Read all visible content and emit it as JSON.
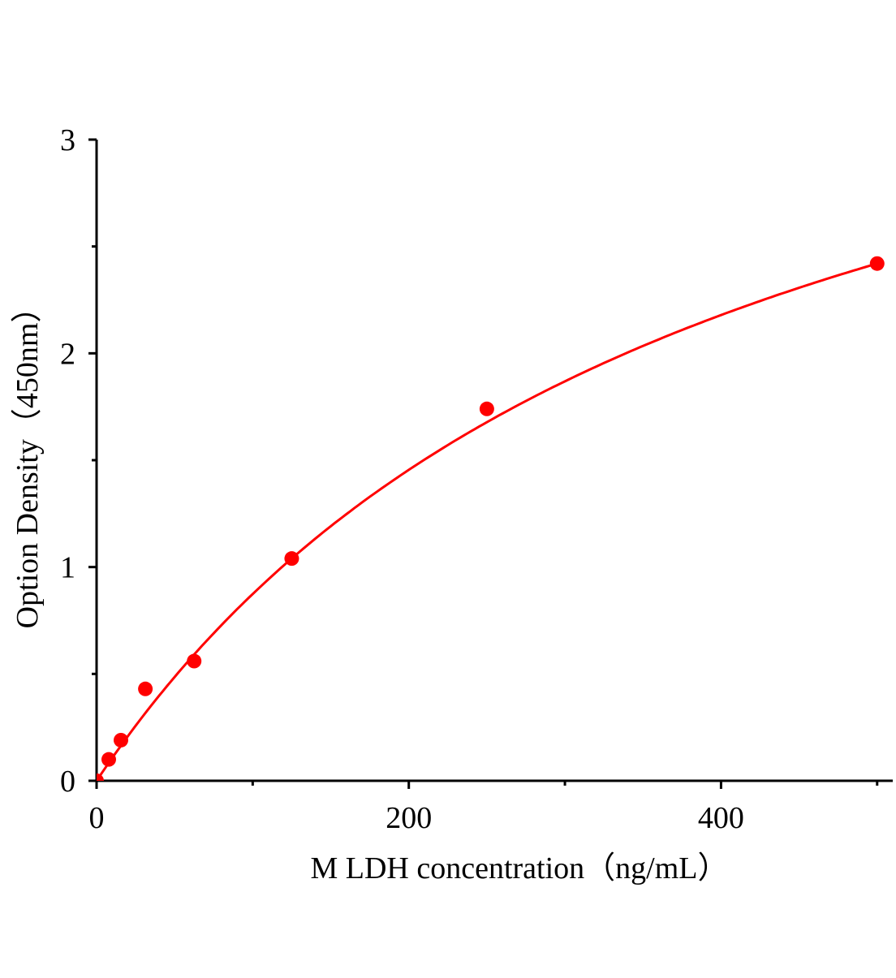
{
  "chart_data": {
    "type": "scatter",
    "title": "",
    "xlabel": "M LDH concentration（ng/mL）",
    "ylabel": "Option Density（450nm）",
    "xlim": [
      0,
      510
    ],
    "ylim": [
      0,
      3
    ],
    "x_ticks": [
      0,
      200,
      400
    ],
    "x_minor_ticks": [
      100,
      300,
      500
    ],
    "y_ticks": [
      0,
      1,
      2,
      3
    ],
    "y_minor_ticks": [
      0.5,
      1.5,
      2.5
    ],
    "grid": false,
    "legend": "none",
    "series": [
      {
        "color": "#ff0000",
        "points": [
          {
            "x": 0,
            "y": 0
          },
          {
            "x": 7.8,
            "y": 0.1
          },
          {
            "x": 15.6,
            "y": 0.19
          },
          {
            "x": 31.25,
            "y": 0.43
          },
          {
            "x": 62.5,
            "y": 0.56
          },
          {
            "x": 125,
            "y": 1.04
          },
          {
            "x": 250,
            "y": 1.74
          },
          {
            "x": 500,
            "y": 2.42
          }
        ],
        "fit_curve": true
      }
    ]
  }
}
